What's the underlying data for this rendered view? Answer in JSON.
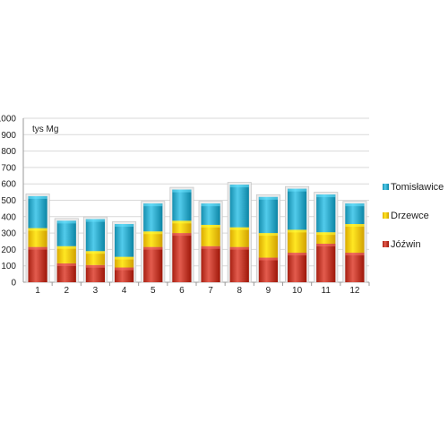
{
  "chart_data": {
    "type": "bar",
    "stacked": true,
    "unit_label": "tys Mg",
    "categories": [
      "1",
      "2",
      "3",
      "4",
      "5",
      "6",
      "7",
      "8",
      "9",
      "10",
      "11",
      "12"
    ],
    "series": [
      {
        "name": "Jóźwin",
        "color": "#c0392b",
        "values": [
          215,
          115,
          105,
          90,
          215,
          300,
          220,
          215,
          150,
          180,
          235,
          180
        ]
      },
      {
        "name": "Drzewce",
        "color": "#f5c400",
        "values": [
          115,
          105,
          85,
          65,
          95,
          75,
          130,
          120,
          150,
          140,
          70,
          175
        ]
      },
      {
        "name": "Tomisławice",
        "color": "#2fa8c8",
        "values": [
          195,
          155,
          195,
          200,
          170,
          190,
          130,
          260,
          220,
          250,
          230,
          125
        ]
      }
    ],
    "ylim": [
      0,
      1000
    ],
    "yticks": [
      "0",
      "100",
      "200",
      "300",
      "400",
      "500",
      "600",
      "700",
      "800",
      "900",
      "1000"
    ],
    "grid": true,
    "legend_position": "right"
  }
}
